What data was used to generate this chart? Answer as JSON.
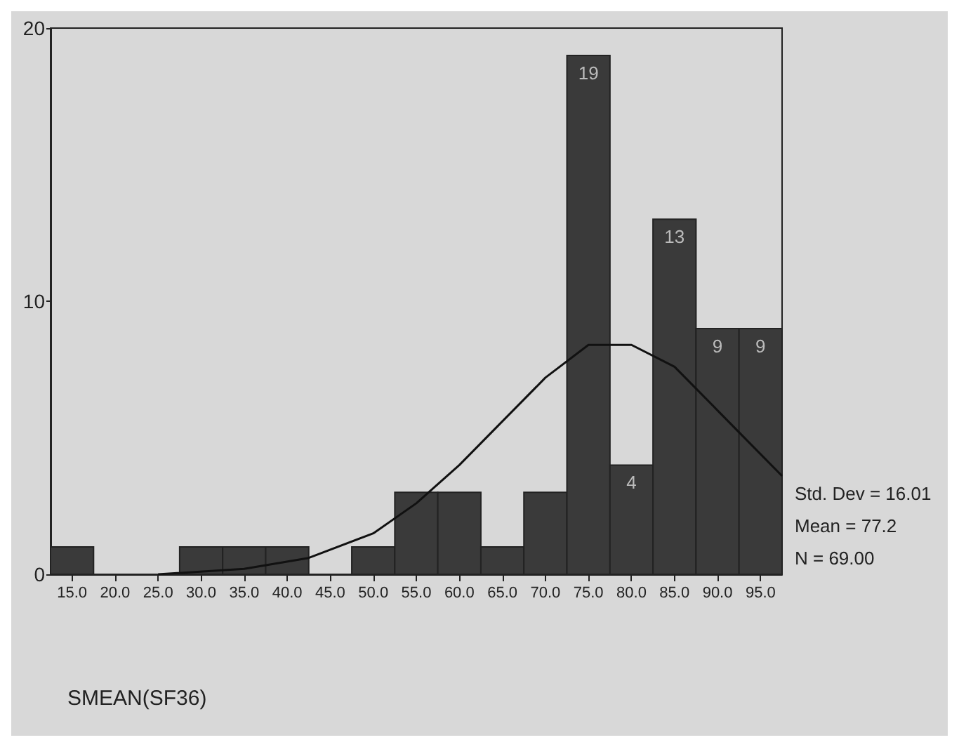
{
  "chart_data": {
    "type": "histogram",
    "xlabel": "SMEAN(SF36)",
    "bins": [
      12.5,
      17.5,
      22.5,
      27.5,
      32.5,
      37.5,
      42.5,
      47.5,
      52.5,
      57.5,
      62.5,
      67.5,
      72.5,
      77.5,
      82.5,
      87.5,
      92.5,
      97.5
    ],
    "values": [
      1,
      0,
      0,
      1,
      1,
      1,
      0,
      1,
      3,
      3,
      1,
      3,
      19,
      4,
      13,
      9,
      9
    ],
    "value_labels": [
      null,
      null,
      null,
      null,
      null,
      null,
      null,
      null,
      null,
      null,
      null,
      null,
      "19",
      "4",
      "13",
      "9",
      "9"
    ],
    "color": "#3a3a3a",
    "series": [
      {
        "type": "line",
        "color": "#111111",
        "x": [
          25,
          35,
          42.5,
          50,
          55,
          60,
          65,
          70,
          75,
          80,
          85,
          90,
          95,
          97.5
        ],
        "values": [
          0,
          0.2,
          0.6,
          1.5,
          2.6,
          4.0,
          5.6,
          7.2,
          8.4,
          8.4,
          7.6,
          6.0,
          4.4,
          3.6
        ]
      }
    ],
    "marker": "none",
    "xlim": [
      12.5,
      97.5
    ],
    "xticks": [
      {
        "value": 15,
        "label": "15.0"
      },
      {
        "value": 20,
        "label": "20.0"
      },
      {
        "value": 25,
        "label": "25.0"
      },
      {
        "value": 30,
        "label": "30.0"
      },
      {
        "value": 35,
        "label": "35.0"
      },
      {
        "value": 40,
        "label": "40.0"
      },
      {
        "value": 45,
        "label": "45.0"
      },
      {
        "value": 50,
        "label": "50.0"
      },
      {
        "value": 55,
        "label": "55.0"
      },
      {
        "value": 60,
        "label": "60.0"
      },
      {
        "value": 65,
        "label": "65.0"
      },
      {
        "value": 70,
        "label": "70.0"
      },
      {
        "value": 75,
        "label": "75.0"
      },
      {
        "value": 80,
        "label": "80.0"
      },
      {
        "value": 85,
        "label": "85.0"
      },
      {
        "value": 90,
        "label": "90.0"
      },
      {
        "value": 95,
        "label": "95.0"
      }
    ],
    "ylim": [
      0,
      20
    ],
    "yticks": [
      0,
      10,
      20
    ],
    "grid": false,
    "annotations": [
      "Std. Dev = 16.01",
      "Mean = 77.2",
      "N = 69.00"
    ]
  }
}
